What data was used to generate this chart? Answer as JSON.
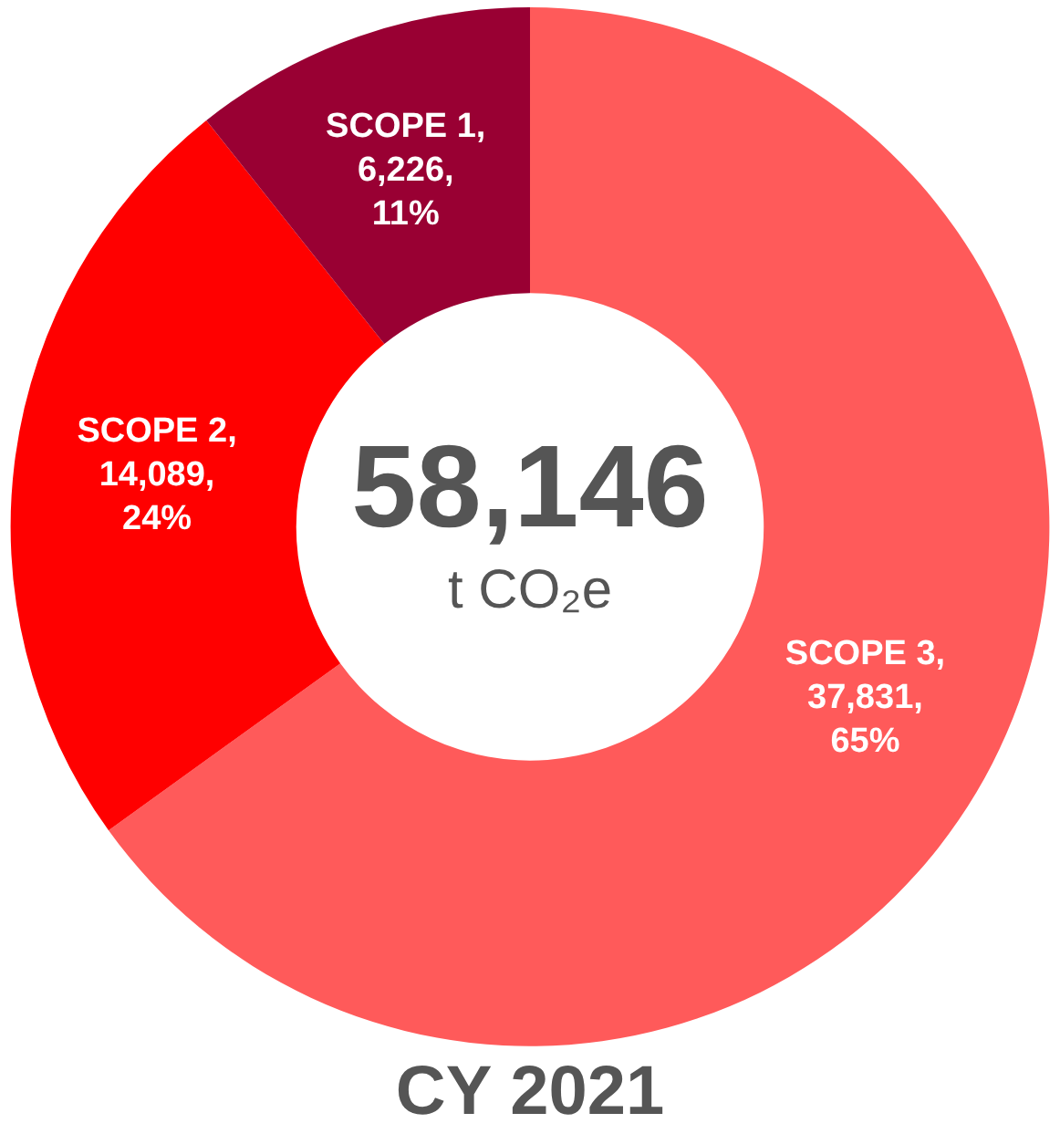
{
  "chart_data": {
    "type": "donut",
    "title": "CY 2021",
    "categories": [
      "SCOPE 3",
      "SCOPE 2",
      "SCOPE 1"
    ],
    "values": [
      37831,
      14089,
      6226
    ],
    "colors": [
      "#ff5a5a",
      "#ff0000",
      "#990033"
    ],
    "value_labels": [
      ", 37,831, 65%",
      ", 14,089, 24%",
      ", 6,226, 11%"
    ],
    "annotations": [
      "58,146",
      "t CO₂e"
    ],
    "legend": false
  }
}
